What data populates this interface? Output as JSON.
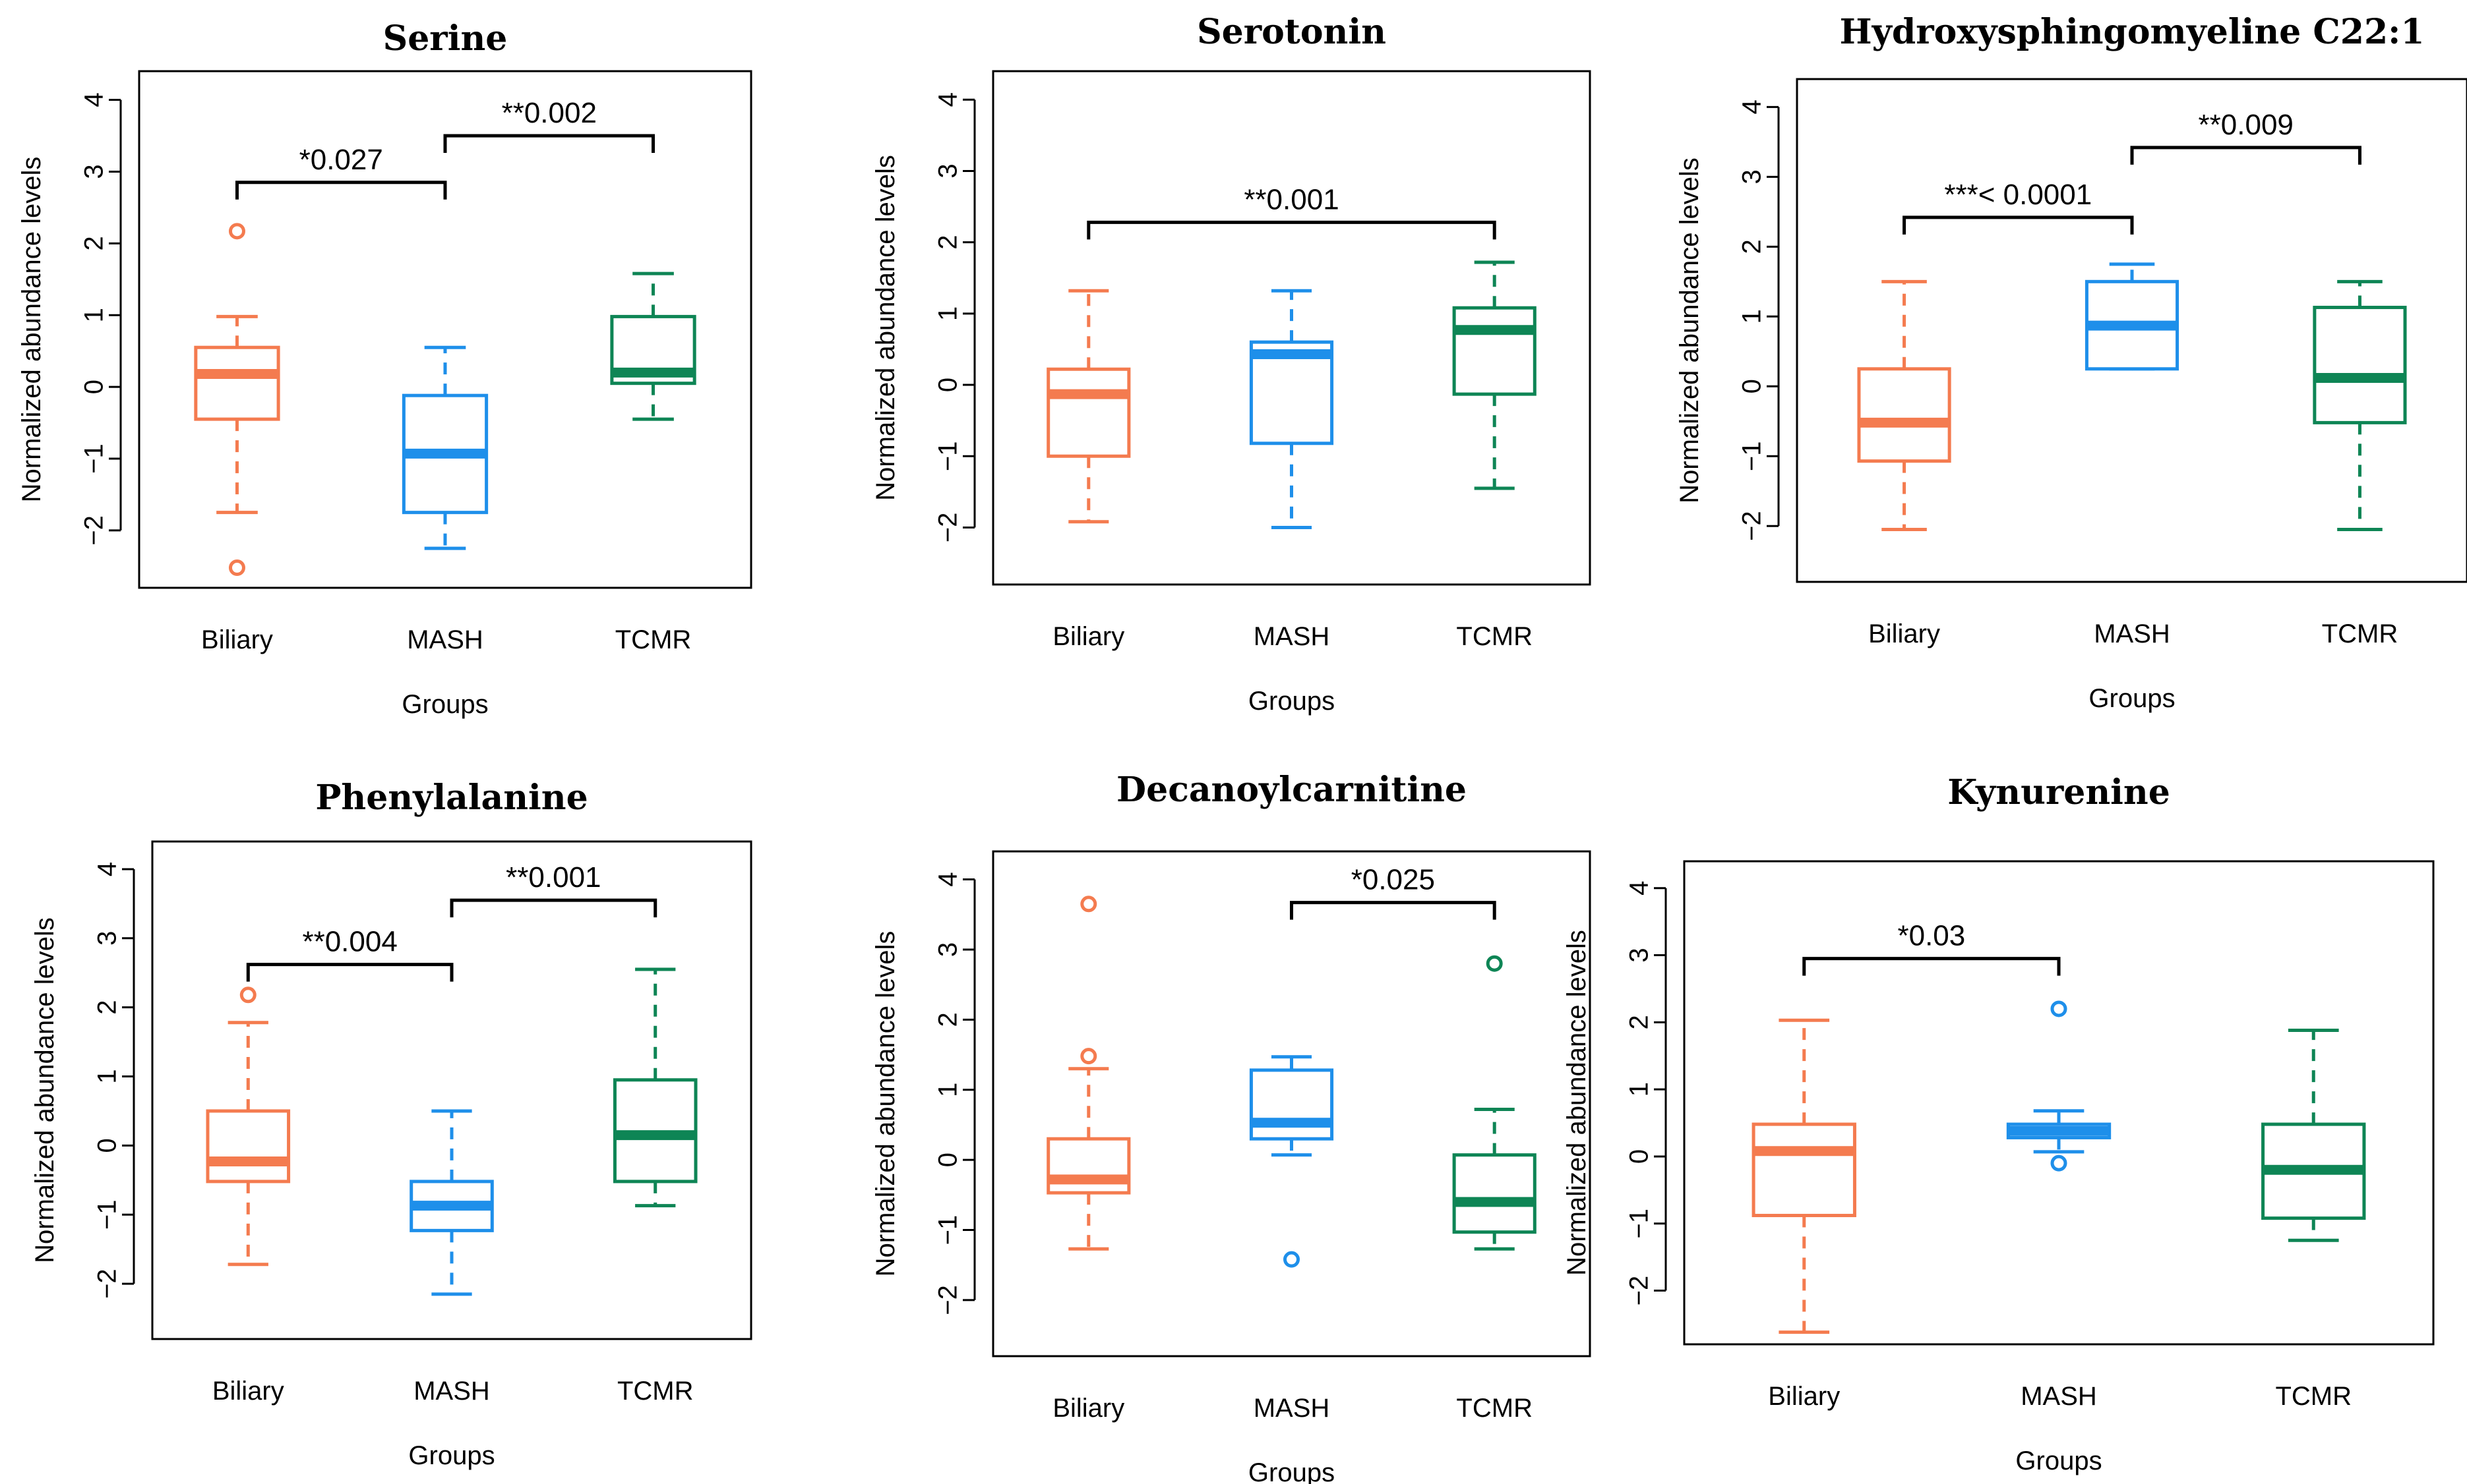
{
  "figure": {
    "xlabel": "Groups",
    "ylabel": "Normalized abundance levels",
    "categories": [
      "Biliary",
      "MASH",
      "TCMR"
    ],
    "colors": {
      "Biliary": "#F47B4F",
      "MASH": "#1E8FEA",
      "TCMR": "#0E8555"
    }
  },
  "chart_data": [
    {
      "type": "box",
      "title": "Serine",
      "xlabel": "Groups",
      "ylabel": "Normalized abundance levels",
      "categories": [
        "Biliary",
        "MASH",
        "TCMR"
      ],
      "ylim": [
        -2.8,
        4.4
      ],
      "yticks": [
        -2,
        -1,
        0,
        1,
        2,
        3,
        4
      ],
      "boxes": [
        {
          "group": "Biliary",
          "whisker_low": -1.75,
          "q1": -0.45,
          "median": 0.18,
          "q3": 0.55,
          "whisker_high": 0.98,
          "outliers": [
            2.17,
            -2.52
          ]
        },
        {
          "group": "MASH",
          "whisker_low": -2.25,
          "q1": -1.75,
          "median": -0.93,
          "q3": -0.12,
          "whisker_high": 0.55,
          "outliers": []
        },
        {
          "group": "TCMR",
          "whisker_low": -0.45,
          "q1": 0.05,
          "median": 0.2,
          "q3": 0.98,
          "whisker_high": 1.58,
          "outliers": []
        }
      ],
      "significance": [
        {
          "from": "Biliary",
          "to": "MASH",
          "y": 2.85,
          "label": "*0.027"
        },
        {
          "from": "MASH",
          "to": "TCMR",
          "y": 3.5,
          "label": "**0.002"
        }
      ]
    },
    {
      "type": "box",
      "title": "Serotonin",
      "xlabel": "Groups",
      "ylabel": "Normalized abundance levels",
      "categories": [
        "Biliary",
        "MASH",
        "TCMR"
      ],
      "ylim": [
        -2.8,
        4.4
      ],
      "yticks": [
        -2,
        -1,
        0,
        1,
        2,
        3,
        4
      ],
      "boxes": [
        {
          "group": "Biliary",
          "whisker_low": -1.92,
          "q1": -1.0,
          "median": -0.13,
          "q3": 0.22,
          "whisker_high": 1.32,
          "outliers": []
        },
        {
          "group": "MASH",
          "whisker_low": -2.0,
          "q1": -0.82,
          "median": 0.43,
          "q3": 0.6,
          "whisker_high": 1.32,
          "outliers": []
        },
        {
          "group": "TCMR",
          "whisker_low": -1.45,
          "q1": -0.13,
          "median": 0.77,
          "q3": 1.08,
          "whisker_high": 1.72,
          "outliers": []
        }
      ],
      "significance": [
        {
          "from": "Biliary",
          "to": "TCMR",
          "y": 2.28,
          "label": "**0.001"
        }
      ]
    },
    {
      "type": "box",
      "title": "Hydroxysphingomyeline C22:1",
      "xlabel": "Groups",
      "ylabel": "Normalized abundance levels",
      "categories": [
        "Biliary",
        "MASH",
        "TCMR"
      ],
      "ylim": [
        -2.8,
        4.4
      ],
      "yticks": [
        -2,
        -1,
        0,
        1,
        2,
        3,
        4
      ],
      "boxes": [
        {
          "group": "Biliary",
          "whisker_low": -2.05,
          "q1": -1.07,
          "median": -0.52,
          "q3": 0.25,
          "whisker_high": 1.5,
          "outliers": []
        },
        {
          "group": "MASH",
          "whisker_low": 0.25,
          "q1": 0.25,
          "median": 0.87,
          "q3": 1.5,
          "whisker_high": 1.75,
          "outliers": []
        },
        {
          "group": "TCMR",
          "whisker_low": -2.05,
          "q1": -0.52,
          "median": 0.12,
          "q3": 1.13,
          "whisker_high": 1.5,
          "outliers": []
        }
      ],
      "significance": [
        {
          "from": "Biliary",
          "to": "MASH",
          "y": 2.42,
          "label": "***< 0.0001"
        },
        {
          "from": "MASH",
          "to": "TCMR",
          "y": 3.42,
          "label": "**0.009"
        }
      ]
    },
    {
      "type": "box",
      "title": "Phenylalanine",
      "xlabel": "Groups",
      "ylabel": "Normalized abundance levels",
      "categories": [
        "Biliary",
        "MASH",
        "TCMR"
      ],
      "ylim": [
        -2.8,
        4.4
      ],
      "yticks": [
        -2,
        -1,
        0,
        1,
        2,
        3,
        4
      ],
      "boxes": [
        {
          "group": "Biliary",
          "whisker_low": -1.72,
          "q1": -0.52,
          "median": -0.23,
          "q3": 0.5,
          "whisker_high": 1.78,
          "outliers": [
            2.18
          ]
        },
        {
          "group": "MASH",
          "whisker_low": -2.15,
          "q1": -1.23,
          "median": -0.87,
          "q3": -0.52,
          "whisker_high": 0.5,
          "outliers": []
        },
        {
          "group": "TCMR",
          "whisker_low": -0.87,
          "q1": -0.52,
          "median": 0.15,
          "q3": 0.95,
          "whisker_high": 2.55,
          "outliers": []
        }
      ],
      "significance": [
        {
          "from": "Biliary",
          "to": "MASH",
          "y": 2.62,
          "label": "**0.004"
        },
        {
          "from": "MASH",
          "to": "TCMR",
          "y": 3.55,
          "label": "**0.001"
        }
      ]
    },
    {
      "type": "box",
      "title": "Decanoylcarnitine",
      "xlabel": "Groups",
      "ylabel": "Normalized abundance levels",
      "categories": [
        "Biliary",
        "MASH",
        "TCMR"
      ],
      "ylim": [
        -2.8,
        4.4
      ],
      "yticks": [
        -2,
        -1,
        0,
        1,
        2,
        3,
        4
      ],
      "boxes": [
        {
          "group": "Biliary",
          "whisker_low": -1.27,
          "q1": -0.47,
          "median": -0.28,
          "q3": 0.3,
          "whisker_high": 1.3,
          "outliers": [
            3.65,
            1.48
          ]
        },
        {
          "group": "MASH",
          "whisker_low": 0.07,
          "q1": 0.3,
          "median": 0.53,
          "q3": 1.28,
          "whisker_high": 1.47,
          "outliers": [
            -1.42
          ]
        },
        {
          "group": "TCMR",
          "whisker_low": -1.27,
          "q1": -1.03,
          "median": -0.6,
          "q3": 0.07,
          "whisker_high": 0.72,
          "outliers": [
            2.8
          ]
        }
      ],
      "significance": [
        {
          "from": "MASH",
          "to": "TCMR",
          "y": 3.67,
          "label": "*0.025"
        }
      ]
    },
    {
      "type": "box",
      "title": "Kynurenine",
      "xlabel": "Groups",
      "ylabel": "Normalized abundance levels",
      "categories": [
        "Biliary",
        "MASH",
        "TCMR"
      ],
      "ylim": [
        -2.8,
        4.4
      ],
      "yticks": [
        -2,
        -1,
        0,
        1,
        2,
        3,
        4
      ],
      "boxes": [
        {
          "group": "Biliary",
          "whisker_low": -2.62,
          "q1": -0.88,
          "median": 0.08,
          "q3": 0.48,
          "whisker_high": 2.03,
          "outliers": []
        },
        {
          "group": "MASH",
          "whisker_low": 0.07,
          "q1": 0.28,
          "median": 0.38,
          "q3": 0.48,
          "whisker_high": 0.68,
          "outliers": [
            2.2,
            -0.1
          ]
        },
        {
          "group": "TCMR",
          "whisker_low": -1.25,
          "q1": -0.92,
          "median": -0.2,
          "q3": 0.48,
          "whisker_high": 1.88,
          "outliers": []
        }
      ],
      "significance": [
        {
          "from": "Biliary",
          "to": "MASH",
          "y": 2.95,
          "label": "*0.03"
        }
      ]
    }
  ]
}
